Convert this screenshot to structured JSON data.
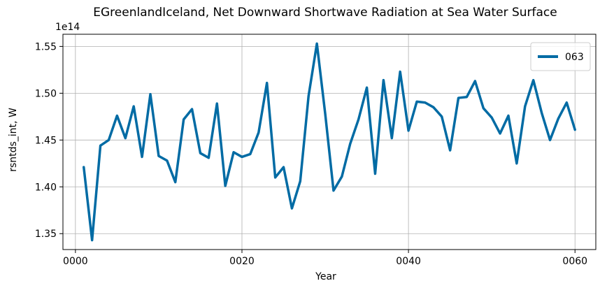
{
  "chart_data": {
    "type": "line",
    "title": "EGreenlandIceland, Net Downward Shortwave Radiation at Sea Water Surface",
    "xlabel": "Year",
    "ylabel": "rsntds_int, W",
    "y_offset_label": "1e14",
    "xlim": [
      -1.5,
      62.5
    ],
    "ylim": [
      1.333,
      1.563
    ],
    "x_ticks": [
      0,
      20,
      40,
      60
    ],
    "x_tick_labels": [
      "0000",
      "0020",
      "0040",
      "0060"
    ],
    "y_ticks": [
      1.35,
      1.4,
      1.45,
      1.5,
      1.55
    ],
    "y_tick_labels": [
      "1.35",
      "1.40",
      "1.45",
      "1.50",
      "1.55"
    ],
    "grid": true,
    "legend_position": "top-right",
    "series": [
      {
        "name": "063",
        "color": "#006ba4",
        "x": [
          1,
          2,
          3,
          4,
          5,
          6,
          7,
          8,
          9,
          10,
          11,
          12,
          13,
          14,
          15,
          16,
          17,
          18,
          19,
          20,
          21,
          22,
          23,
          24,
          25,
          26,
          27,
          28,
          29,
          30,
          31,
          32,
          33,
          34,
          35,
          36,
          37,
          38,
          39,
          40,
          41,
          42,
          43,
          44,
          45,
          46,
          47,
          48,
          49,
          50,
          51,
          52,
          53,
          54,
          55,
          56,
          57,
          58,
          59,
          60
        ],
        "values": [
          1.421,
          1.343,
          1.444,
          1.45,
          1.476,
          1.452,
          1.486,
          1.432,
          1.499,
          1.433,
          1.428,
          1.405,
          1.472,
          1.483,
          1.436,
          1.431,
          1.489,
          1.401,
          1.437,
          1.432,
          1.435,
          1.458,
          1.511,
          1.41,
          1.421,
          1.377,
          1.406,
          1.497,
          1.553,
          1.478,
          1.396,
          1.411,
          1.446,
          1.472,
          1.506,
          1.414,
          1.514,
          1.452,
          1.523,
          1.46,
          1.491,
          1.49,
          1.485,
          1.475,
          1.439,
          1.495,
          1.496,
          1.513,
          1.484,
          1.474,
          1.457,
          1.476,
          1.425,
          1.486,
          1.514,
          1.479,
          1.45,
          1.473,
          1.49,
          1.461
        ]
      }
    ]
  }
}
